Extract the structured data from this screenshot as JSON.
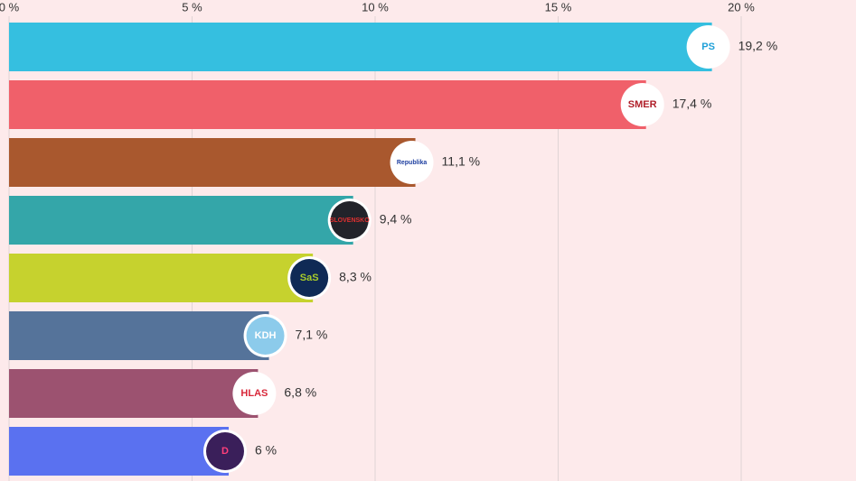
{
  "chart_data": {
    "type": "bar",
    "orientation": "horizontal",
    "categories": [
      "PS",
      "SMER",
      "Republika",
      "SLOVENSKO",
      "SaS",
      "KDH",
      "HLAS",
      "D"
    ],
    "values": [
      19.2,
      17.4,
      11.1,
      9.4,
      8.3,
      7.1,
      6.8,
      6
    ],
    "value_labels": [
      "19,2 %",
      "17,4 %",
      "11,1 %",
      "9,4 %",
      "8,3 %",
      "7,1 %",
      "6,8 %",
      "6 %"
    ],
    "colors": [
      "#35bfe0",
      "#f0606a",
      "#a9582e",
      "#34a6a9",
      "#c6d22e",
      "#55739a",
      "#9c5270",
      "#5a71f0"
    ],
    "logo_colors": [
      [
        "#ffffff",
        "#1fa0d8"
      ],
      [
        "#ffffff",
        "#b0202a"
      ],
      [
        "#ffffff",
        "#1e3fa0"
      ],
      [
        "#22232a",
        "#e23030"
      ],
      [
        "#0f2a55",
        "#a8cc2a"
      ],
      [
        "#8ccbeb",
        "#ffffff"
      ],
      [
        "#ffffff",
        "#d8283a"
      ],
      [
        "#3a1f5a",
        "#ff3f7a"
      ]
    ],
    "xlim": [
      0,
      23
    ],
    "xticks": [
      {
        "value": 0,
        "label": "0 %"
      },
      {
        "value": 5,
        "label": "5 %"
      },
      {
        "value": 10,
        "label": "10 %"
      },
      {
        "value": 15,
        "label": "15 %"
      },
      {
        "value": 20,
        "label": "20 %"
      }
    ],
    "grid": true
  }
}
